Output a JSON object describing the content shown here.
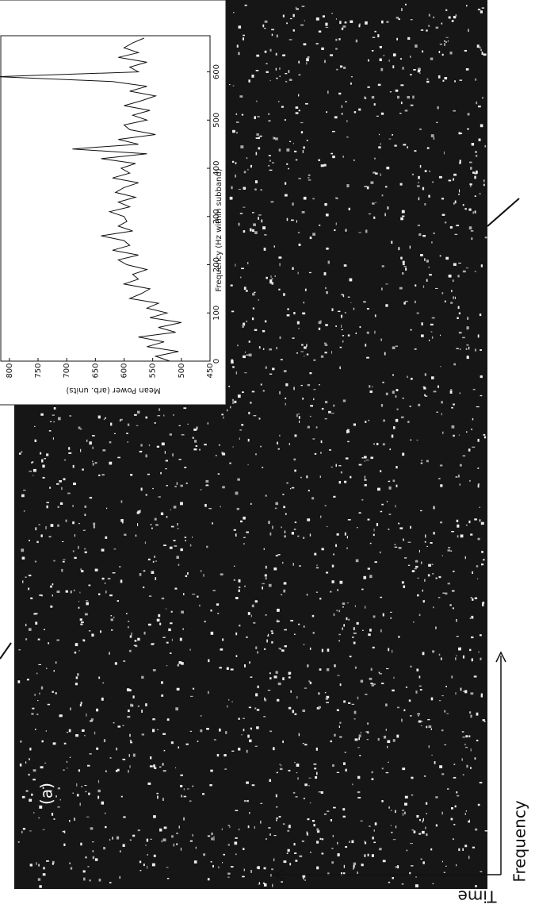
{
  "chart_data": {
    "type": "line",
    "x_label": "Frequency (Hz within subband)",
    "y_label": "Mean Power (arb. units)",
    "annotations": [
      "(a)",
      "Frequency",
      "Time"
    ],
    "x": [
      0,
      10,
      20,
      30,
      40,
      50,
      60,
      70,
      80,
      90,
      100,
      110,
      120,
      130,
      140,
      150,
      160,
      170,
      180,
      190,
      200,
      210,
      220,
      230,
      240,
      250,
      260,
      270,
      280,
      290,
      300,
      310,
      320,
      330,
      340,
      350,
      360,
      370,
      380,
      390,
      400,
      410,
      420,
      430,
      440,
      450,
      460,
      470,
      480,
      490,
      500,
      510,
      520,
      530,
      540,
      550,
      560,
      570,
      580,
      590,
      600,
      610,
      620,
      630,
      640,
      650,
      660,
      670
    ],
    "series": [
      {
        "color": "#111111",
        "values": [
          520,
          545,
          505,
          560,
          530,
          575,
          510,
          540,
          500,
          555,
          525,
          560,
          540,
          590,
          570,
          555,
          600,
          575,
          585,
          560,
          595,
          610,
          575,
          620,
          590,
          600,
          640,
          585,
          610,
          595,
          600,
          625,
          590,
          610,
          580,
          615,
          600,
          575,
          620,
          590,
          605,
          580,
          640,
          560,
          690,
          575,
          610,
          545,
          590,
          600,
          560,
          585,
          555,
          600,
          570,
          545,
          590,
          560,
          620,
          820,
          575,
          590,
          560,
          610,
          575,
          600,
          585,
          565
        ]
      }
    ],
    "xlim": [
      0,
      675
    ],
    "ylim": [
      450,
      815
    ],
    "xticks": [
      0,
      100,
      200,
      300,
      400,
      500,
      600
    ],
    "yticks": [
      450,
      500,
      550,
      600,
      650,
      700,
      750,
      800
    ]
  }
}
